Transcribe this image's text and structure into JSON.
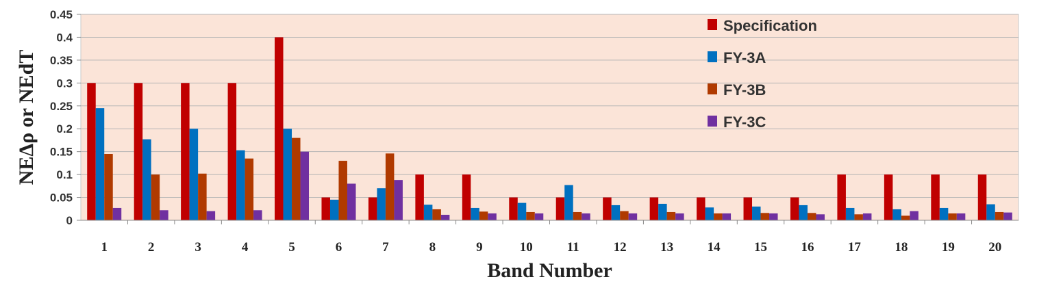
{
  "chart_data": {
    "type": "bar",
    "title": "",
    "xlabel": "Band Number",
    "ylabel": "NEΔρ or NEdT",
    "ylim": [
      0,
      0.45
    ],
    "yticks": [
      0,
      0.05,
      0.1,
      0.15,
      0.2,
      0.25,
      0.3,
      0.35,
      0.4,
      0.45
    ],
    "ytick_labels": [
      "0",
      "0.05",
      "0.1",
      "0.15",
      "0.2",
      "0.25",
      "0.3",
      "0.35",
      "0.4",
      "0.45"
    ],
    "grid": true,
    "legend_position": "top-right",
    "plot_background": "#fbe4d8",
    "categories": [
      "1",
      "2",
      "3",
      "4",
      "5",
      "6",
      "7",
      "8",
      "9",
      "10",
      "11",
      "12",
      "13",
      "14",
      "15",
      "16",
      "17",
      "18",
      "19",
      "20"
    ],
    "series": [
      {
        "name": "Specification",
        "color": "#c00000",
        "values": [
          0.3,
          0.3,
          0.3,
          0.3,
          0.4,
          0.05,
          0.05,
          0.1,
          0.1,
          0.05,
          0.05,
          0.05,
          0.05,
          0.05,
          0.05,
          0.05,
          0.1,
          0.1,
          0.1,
          0.1
        ]
      },
      {
        "name": "FY-3A",
        "color": "#0070c0",
        "values": [
          0.245,
          0.177,
          0.2,
          0.153,
          0.2,
          0.045,
          0.07,
          0.034,
          0.027,
          0.038,
          0.077,
          0.033,
          0.036,
          0.028,
          0.03,
          0.033,
          0.027,
          0.024,
          0.027,
          0.035
        ]
      },
      {
        "name": "FY-3B",
        "color": "#b03a00",
        "values": [
          0.145,
          0.1,
          0.102,
          0.135,
          0.18,
          0.13,
          0.146,
          0.024,
          0.019,
          0.018,
          0.018,
          0.02,
          0.018,
          0.015,
          0.016,
          0.016,
          0.013,
          0.01,
          0.015,
          0.018
        ]
      },
      {
        "name": "FY-3C",
        "color": "#7030a0",
        "values": [
          0.027,
          0.022,
          0.02,
          0.022,
          0.15,
          0.08,
          0.088,
          0.012,
          0.015,
          0.015,
          0.015,
          0.015,
          0.015,
          0.015,
          0.015,
          0.013,
          0.015,
          0.02,
          0.015,
          0.017
        ]
      }
    ]
  }
}
